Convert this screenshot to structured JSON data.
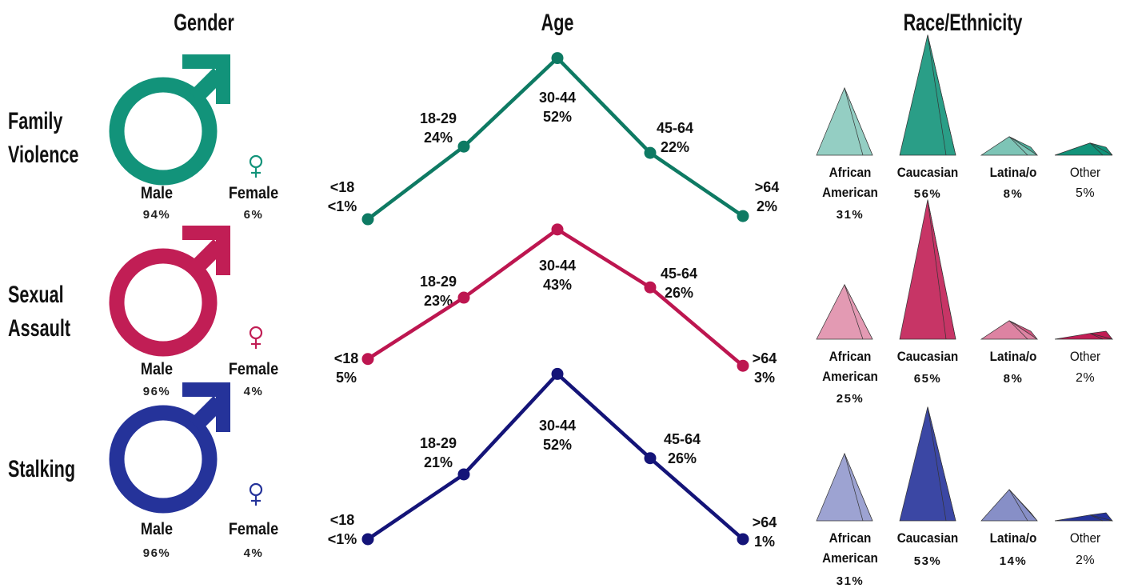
{
  "headers": {
    "gender": "Gender",
    "age": "Age",
    "race": "Race/Ethnicity"
  },
  "rows": [
    {
      "label": "Family\nViolence",
      "color": "#12937a",
      "gender": {
        "male_label": "Male",
        "male_pct": "94%",
        "female_label": "Female",
        "female_pct": "6%"
      },
      "age_labels": [
        "<18\n<1%",
        "18-29\n24%",
        "30-44\n52%",
        "45-64\n22%",
        ">64\n2%"
      ],
      "race": [
        {
          "label": "African\nAmerican",
          "pct": "31%"
        },
        {
          "label": "Caucasian",
          "pct": "56%"
        },
        {
          "label": "Latina/o",
          "pct": "8%"
        },
        {
          "label": "Other",
          "pct": "5%"
        }
      ]
    },
    {
      "label": "Sexual\nAssault",
      "color": "#c11e55",
      "gender": {
        "male_label": "Male",
        "male_pct": "96%",
        "female_label": "Female",
        "female_pct": "4%"
      },
      "age_labels": [
        "<18\n5%",
        "18-29\n23%",
        "30-44\n43%",
        "45-64\n26%",
        ">64\n3%"
      ],
      "race": [
        {
          "label": "African\nAmerican",
          "pct": "25%"
        },
        {
          "label": "Caucasian",
          "pct": "65%"
        },
        {
          "label": "Latina/o",
          "pct": "8%"
        },
        {
          "label": "Other",
          "pct": "2%"
        }
      ]
    },
    {
      "label": "Stalking",
      "color": "#25339a",
      "gender": {
        "male_label": "Male",
        "male_pct": "96%",
        "female_label": "Female",
        "female_pct": "4%"
      },
      "age_labels": [
        "<18\n<1%",
        "18-29\n21%",
        "30-44\n52%",
        "45-64\n26%",
        ">64\n1%"
      ],
      "race": [
        {
          "label": "African\nAmerican",
          "pct": "31%"
        },
        {
          "label": "Caucasian",
          "pct": "53%"
        },
        {
          "label": "Latina/o",
          "pct": "14%"
        },
        {
          "label": "Other",
          "pct": "2%"
        }
      ]
    }
  ],
  "chart_data": {
    "type": "line",
    "categories": [
      "<18",
      "18-29",
      "30-44",
      "45-64",
      ">64"
    ],
    "series": [
      {
        "name": "Family Violence",
        "values": [
          1,
          24,
          52,
          22,
          2
        ]
      },
      {
        "name": "Sexual Assault",
        "values": [
          5,
          23,
          43,
          26,
          3
        ]
      },
      {
        "name": "Stalking",
        "values": [
          1,
          21,
          52,
          26,
          1
        ]
      }
    ],
    "gender": {
      "categories": [
        "Male",
        "Female"
      ],
      "series": [
        {
          "name": "Family Violence",
          "values": [
            94,
            6
          ]
        },
        {
          "name": "Sexual Assault",
          "values": [
            96,
            4
          ]
        },
        {
          "name": "Stalking",
          "values": [
            96,
            4
          ]
        }
      ]
    },
    "race": {
      "categories": [
        "African American",
        "Caucasian",
        "Latina/o",
        "Other"
      ],
      "series": [
        {
          "name": "Family Violence",
          "values": [
            31,
            56,
            8,
            5
          ]
        },
        {
          "name": "Sexual Assault",
          "values": [
            25,
            65,
            8,
            2
          ]
        },
        {
          "name": "Stalking",
          "values": [
            31,
            53,
            14,
            2
          ]
        }
      ]
    }
  }
}
